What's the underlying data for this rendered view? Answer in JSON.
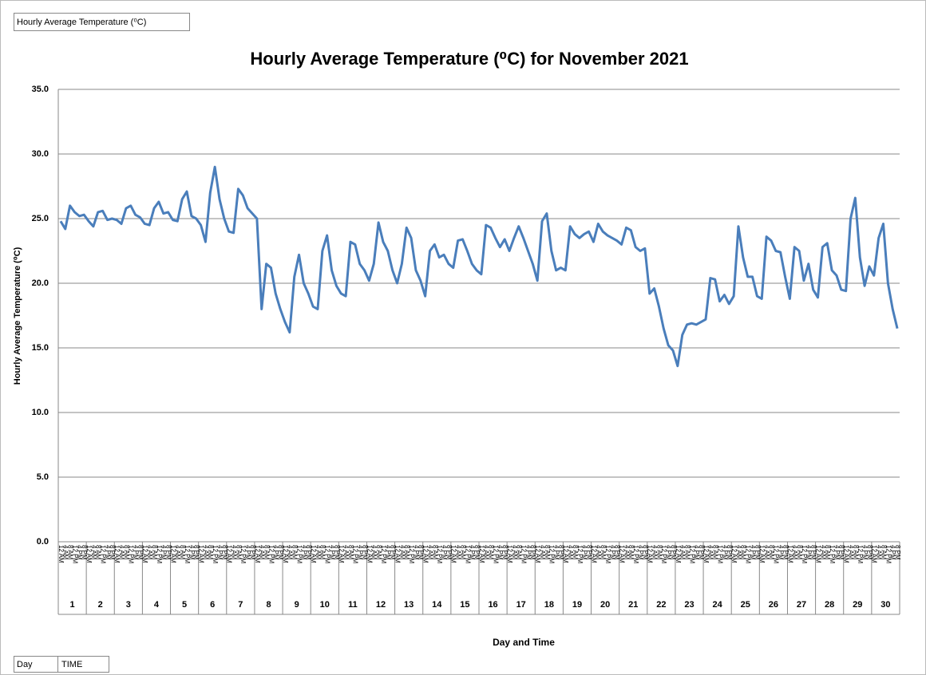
{
  "chart_data": {
    "type": "line",
    "field_button": "Hourly Average Temperature (⁰C)",
    "row_fields": [
      "Day",
      "TIME"
    ],
    "title": "Hourly Average Temperature (⁰C) for November 2021",
    "ylabel": "Hourly Average Temperature (⁰C)",
    "xlabel": "Day and Time",
    "categories": [
      "1",
      "2",
      "3",
      "4",
      "5",
      "6",
      "7",
      "8",
      "9",
      "10",
      "11",
      "12",
      "13",
      "14",
      "15",
      "16",
      "17",
      "18",
      "19",
      "20",
      "21",
      "22",
      "23",
      "24",
      "25",
      "26",
      "27",
      "28",
      "29",
      "30"
    ],
    "time_labels": [
      "12 AM",
      "4 AM",
      "8 AM",
      "12 PM",
      "4 PM",
      "8 PM"
    ],
    "series": [
      {
        "name": "Hourly Average Temperature (⁰C)",
        "color": "#4a7ebb",
        "values": [
          [
            24.8,
            24.2,
            26.0,
            25.5,
            25.2,
            25.3
          ],
          [
            24.8,
            24.4,
            25.5,
            25.6,
            24.9,
            25.0
          ],
          [
            24.9,
            24.6,
            25.8,
            26.0,
            25.3,
            25.1
          ],
          [
            24.6,
            24.5,
            25.8,
            26.3,
            25.4,
            25.5
          ],
          [
            24.9,
            24.8,
            26.5,
            27.1,
            25.2,
            25.0
          ],
          [
            24.5,
            23.2,
            27.0,
            29.0,
            26.5,
            25.0
          ],
          [
            24.0,
            23.9,
            27.3,
            26.8,
            25.8,
            25.4
          ],
          [
            25.0,
            18.0,
            21.5,
            21.2,
            19.2,
            18.0
          ],
          [
            17.0,
            16.2,
            20.5,
            22.2,
            20.0,
            19.2
          ],
          [
            18.2,
            18.0,
            22.5,
            23.7,
            21.0,
            19.8
          ],
          [
            19.2,
            19.0,
            23.2,
            23.0,
            21.5,
            21.0
          ],
          [
            20.2,
            21.5,
            24.7,
            23.2,
            22.5,
            21.0
          ],
          [
            20.0,
            21.5,
            24.3,
            23.5,
            21.0,
            20.2
          ],
          [
            19.0,
            22.5,
            23.0,
            22.0,
            22.2,
            21.5
          ],
          [
            21.2,
            23.3,
            23.4,
            22.5,
            21.5,
            21.0
          ],
          [
            20.7,
            24.5,
            24.3,
            23.5,
            22.8,
            23.4
          ],
          [
            22.5,
            23.5,
            24.4,
            23.5,
            22.5,
            21.5
          ],
          [
            20.2,
            24.8,
            25.4,
            22.5,
            21.0,
            21.2
          ],
          [
            21.0,
            24.4,
            23.8,
            23.5,
            23.8,
            24.0
          ],
          [
            23.2,
            24.6,
            24.0,
            23.7,
            23.5,
            23.3
          ],
          [
            23.0,
            24.3,
            24.1,
            22.8,
            22.5,
            22.7
          ],
          [
            19.2,
            19.6,
            18.2,
            16.5,
            15.2,
            14.8
          ],
          [
            13.6,
            16.0,
            16.8,
            16.9,
            16.8,
            17.0
          ],
          [
            17.2,
            20.4,
            20.3,
            18.6,
            19.1,
            18.4
          ],
          [
            19.0,
            24.4,
            22.0,
            20.5,
            20.5,
            19.0
          ],
          [
            18.8,
            23.6,
            23.3,
            22.5,
            22.4,
            20.5
          ],
          [
            18.8,
            22.8,
            22.5,
            20.2,
            21.5,
            19.5
          ],
          [
            18.9,
            22.8,
            23.1,
            21.0,
            20.6,
            19.5
          ],
          [
            19.4,
            25.0,
            26.6,
            22.0,
            19.8,
            21.3
          ],
          [
            20.6,
            23.5,
            24.6,
            20.0,
            18.0,
            16.5
          ]
        ]
      }
    ],
    "ylim": [
      0,
      35
    ],
    "yticks": [
      {
        "value": 0,
        "label": "0.0"
      },
      {
        "value": 5,
        "label": "5.0"
      },
      {
        "value": 10,
        "label": "10.0"
      },
      {
        "value": 15,
        "label": "15.0"
      },
      {
        "value": 20,
        "label": "20.0"
      },
      {
        "value": 25,
        "label": "25.0"
      },
      {
        "value": 30,
        "label": "30.0"
      },
      {
        "value": 35,
        "label": "35.0"
      }
    ],
    "grid": true
  }
}
